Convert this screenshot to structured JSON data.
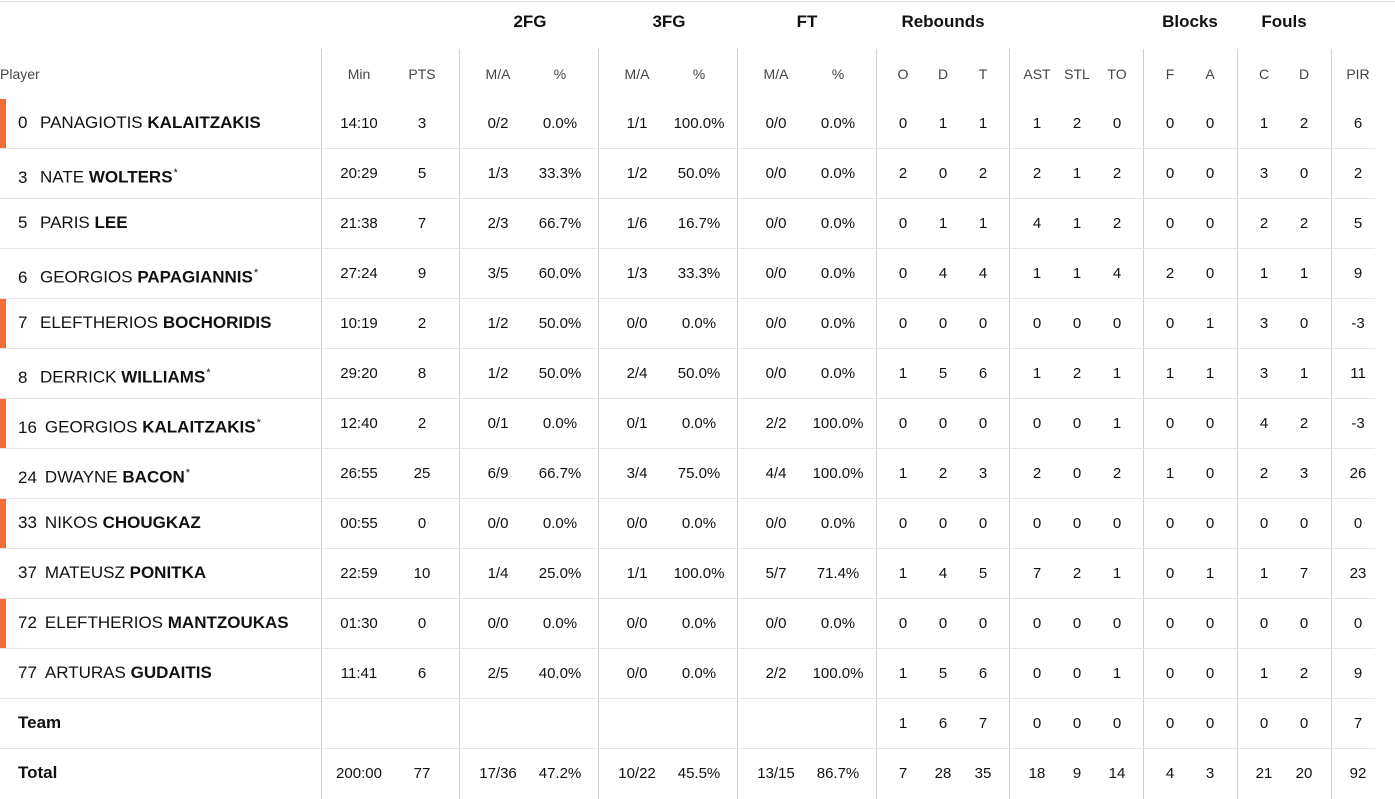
{
  "groups": {
    "fg2": "2FG",
    "fg3": "3FG",
    "ft": "FT",
    "rebounds": "Rebounds",
    "blocks": "Blocks",
    "fouls": "Fouls"
  },
  "columns": {
    "player": "Player",
    "min": "Min",
    "pts": "PTS",
    "fg2_ma": "M/A",
    "fg2_pct": "%",
    "fg3_ma": "M/A",
    "fg3_pct": "%",
    "ft_ma": "M/A",
    "ft_pct": "%",
    "reb_o": "O",
    "reb_d": "D",
    "reb_t": "T",
    "ast": "AST",
    "stl": "STL",
    "to": "TO",
    "blk_f": "F",
    "blk_a": "A",
    "foul_c": "C",
    "foul_d": "D",
    "pir": "PIR"
  },
  "marker_color": "#f26b3a",
  "players": [
    {
      "num": "0",
      "first": "PANAGIOTIS",
      "last": "KALAITZAKIS",
      "starter": false,
      "marker": true,
      "min": "14:10",
      "pts": "3",
      "fg2_ma": "0/2",
      "fg2_pct": "0.0%",
      "fg3_ma": "1/1",
      "fg3_pct": "100.0%",
      "ft_ma": "0/0",
      "ft_pct": "0.0%",
      "reb_o": "0",
      "reb_d": "1",
      "reb_t": "1",
      "ast": "1",
      "stl": "2",
      "to": "0",
      "blk_f": "0",
      "blk_a": "0",
      "foul_c": "1",
      "foul_d": "2",
      "pir": "6"
    },
    {
      "num": "3",
      "first": "NATE",
      "last": "WOLTERS",
      "starter": true,
      "marker": false,
      "min": "20:29",
      "pts": "5",
      "fg2_ma": "1/3",
      "fg2_pct": "33.3%",
      "fg3_ma": "1/2",
      "fg3_pct": "50.0%",
      "ft_ma": "0/0",
      "ft_pct": "0.0%",
      "reb_o": "2",
      "reb_d": "0",
      "reb_t": "2",
      "ast": "2",
      "stl": "1",
      "to": "2",
      "blk_f": "0",
      "blk_a": "0",
      "foul_c": "3",
      "foul_d": "0",
      "pir": "2"
    },
    {
      "num": "5",
      "first": "PARIS",
      "last": "LEE",
      "starter": false,
      "marker": false,
      "min": "21:38",
      "pts": "7",
      "fg2_ma": "2/3",
      "fg2_pct": "66.7%",
      "fg3_ma": "1/6",
      "fg3_pct": "16.7%",
      "ft_ma": "0/0",
      "ft_pct": "0.0%",
      "reb_o": "0",
      "reb_d": "1",
      "reb_t": "1",
      "ast": "4",
      "stl": "1",
      "to": "2",
      "blk_f": "0",
      "blk_a": "0",
      "foul_c": "2",
      "foul_d": "2",
      "pir": "5"
    },
    {
      "num": "6",
      "first": "GEORGIOS",
      "last": "PAPAGIANNIS",
      "starter": true,
      "marker": false,
      "min": "27:24",
      "pts": "9",
      "fg2_ma": "3/5",
      "fg2_pct": "60.0%",
      "fg3_ma": "1/3",
      "fg3_pct": "33.3%",
      "ft_ma": "0/0",
      "ft_pct": "0.0%",
      "reb_o": "0",
      "reb_d": "4",
      "reb_t": "4",
      "ast": "1",
      "stl": "1",
      "to": "4",
      "blk_f": "2",
      "blk_a": "0",
      "foul_c": "1",
      "foul_d": "1",
      "pir": "9"
    },
    {
      "num": "7",
      "first": "ELEFTHERIOS",
      "last": "BOCHORIDIS",
      "starter": false,
      "marker": true,
      "min": "10:19",
      "pts": "2",
      "fg2_ma": "1/2",
      "fg2_pct": "50.0%",
      "fg3_ma": "0/0",
      "fg3_pct": "0.0%",
      "ft_ma": "0/0",
      "ft_pct": "0.0%",
      "reb_o": "0",
      "reb_d": "0",
      "reb_t": "0",
      "ast": "0",
      "stl": "0",
      "to": "0",
      "blk_f": "0",
      "blk_a": "1",
      "foul_c": "3",
      "foul_d": "0",
      "pir": "-3"
    },
    {
      "num": "8",
      "first": "DERRICK",
      "last": "WILLIAMS",
      "starter": true,
      "marker": false,
      "min": "29:20",
      "pts": "8",
      "fg2_ma": "1/2",
      "fg2_pct": "50.0%",
      "fg3_ma": "2/4",
      "fg3_pct": "50.0%",
      "ft_ma": "0/0",
      "ft_pct": "0.0%",
      "reb_o": "1",
      "reb_d": "5",
      "reb_t": "6",
      "ast": "1",
      "stl": "2",
      "to": "1",
      "blk_f": "1",
      "blk_a": "1",
      "foul_c": "3",
      "foul_d": "1",
      "pir": "11"
    },
    {
      "num": "16",
      "first": "GEORGIOS",
      "last": "KALAITZAKIS",
      "starter": true,
      "marker": true,
      "min": "12:40",
      "pts": "2",
      "fg2_ma": "0/1",
      "fg2_pct": "0.0%",
      "fg3_ma": "0/1",
      "fg3_pct": "0.0%",
      "ft_ma": "2/2",
      "ft_pct": "100.0%",
      "reb_o": "0",
      "reb_d": "0",
      "reb_t": "0",
      "ast": "0",
      "stl": "0",
      "to": "1",
      "blk_f": "0",
      "blk_a": "0",
      "foul_c": "4",
      "foul_d": "2",
      "pir": "-3"
    },
    {
      "num": "24",
      "first": "DWAYNE",
      "last": "BACON",
      "starter": true,
      "marker": false,
      "min": "26:55",
      "pts": "25",
      "fg2_ma": "6/9",
      "fg2_pct": "66.7%",
      "fg3_ma": "3/4",
      "fg3_pct": "75.0%",
      "ft_ma": "4/4",
      "ft_pct": "100.0%",
      "reb_o": "1",
      "reb_d": "2",
      "reb_t": "3",
      "ast": "2",
      "stl": "0",
      "to": "2",
      "blk_f": "1",
      "blk_a": "0",
      "foul_c": "2",
      "foul_d": "3",
      "pir": "26"
    },
    {
      "num": "33",
      "first": "NIKOS",
      "last": "CHOUGKAZ",
      "starter": false,
      "marker": true,
      "min": "00:55",
      "pts": "0",
      "fg2_ma": "0/0",
      "fg2_pct": "0.0%",
      "fg3_ma": "0/0",
      "fg3_pct": "0.0%",
      "ft_ma": "0/0",
      "ft_pct": "0.0%",
      "reb_o": "0",
      "reb_d": "0",
      "reb_t": "0",
      "ast": "0",
      "stl": "0",
      "to": "0",
      "blk_f": "0",
      "blk_a": "0",
      "foul_c": "0",
      "foul_d": "0",
      "pir": "0"
    },
    {
      "num": "37",
      "first": "MATEUSZ",
      "last": "PONITKA",
      "starter": false,
      "marker": false,
      "min": "22:59",
      "pts": "10",
      "fg2_ma": "1/4",
      "fg2_pct": "25.0%",
      "fg3_ma": "1/1",
      "fg3_pct": "100.0%",
      "ft_ma": "5/7",
      "ft_pct": "71.4%",
      "reb_o": "1",
      "reb_d": "4",
      "reb_t": "5",
      "ast": "7",
      "stl": "2",
      "to": "1",
      "blk_f": "0",
      "blk_a": "1",
      "foul_c": "1",
      "foul_d": "7",
      "pir": "23"
    },
    {
      "num": "72",
      "first": "ELEFTHERIOS",
      "last": "MANTZOUKAS",
      "starter": false,
      "marker": true,
      "min": "01:30",
      "pts": "0",
      "fg2_ma": "0/0",
      "fg2_pct": "0.0%",
      "fg3_ma": "0/0",
      "fg3_pct": "0.0%",
      "ft_ma": "0/0",
      "ft_pct": "0.0%",
      "reb_o": "0",
      "reb_d": "0",
      "reb_t": "0",
      "ast": "0",
      "stl": "0",
      "to": "0",
      "blk_f": "0",
      "blk_a": "0",
      "foul_c": "0",
      "foul_d": "0",
      "pir": "0"
    },
    {
      "num": "77",
      "first": "ARTURAS",
      "last": "GUDAITIS",
      "starter": false,
      "marker": false,
      "min": "11:41",
      "pts": "6",
      "fg2_ma": "2/5",
      "fg2_pct": "40.0%",
      "fg3_ma": "0/0",
      "fg3_pct": "0.0%",
      "ft_ma": "2/2",
      "ft_pct": "100.0%",
      "reb_o": "1",
      "reb_d": "5",
      "reb_t": "6",
      "ast": "0",
      "stl": "0",
      "to": "1",
      "blk_f": "0",
      "blk_a": "0",
      "foul_c": "1",
      "foul_d": "2",
      "pir": "9"
    }
  ],
  "team": {
    "label": "Team",
    "min": "",
    "pts": "",
    "fg2_ma": "",
    "fg2_pct": "",
    "fg3_ma": "",
    "fg3_pct": "",
    "ft_ma": "",
    "ft_pct": "",
    "reb_o": "1",
    "reb_d": "6",
    "reb_t": "7",
    "ast": "0",
    "stl": "0",
    "to": "0",
    "blk_f": "0",
    "blk_a": "0",
    "foul_c": "0",
    "foul_d": "0",
    "pir": "7"
  },
  "total": {
    "label": "Total",
    "min": "200:00",
    "pts": "77",
    "fg2_ma": "17/36",
    "fg2_pct": "47.2%",
    "fg3_ma": "10/22",
    "fg3_pct": "45.5%",
    "ft_ma": "13/15",
    "ft_pct": "86.7%",
    "reb_o": "7",
    "reb_d": "28",
    "reb_t": "35",
    "ast": "18",
    "stl": "9",
    "to": "14",
    "blk_f": "4",
    "blk_a": "3",
    "foul_c": "21",
    "foul_d": "20",
    "pir": "92"
  }
}
